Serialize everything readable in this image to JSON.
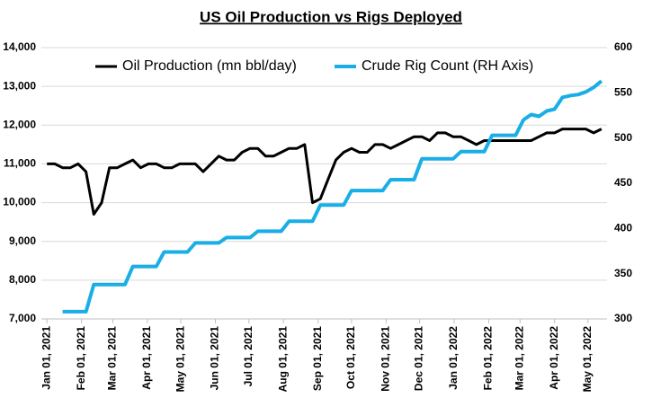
{
  "chart_data": {
    "type": "line",
    "title": "US Oil Production vs Rigs Deployed",
    "legend": "top",
    "grid": true,
    "x": [
      "2021-01-01",
      "2021-01-08",
      "2021-01-15",
      "2021-01-22",
      "2021-01-29",
      "2021-02-05",
      "2021-02-12",
      "2021-02-19",
      "2021-02-26",
      "2021-03-05",
      "2021-03-12",
      "2021-03-19",
      "2021-03-26",
      "2021-04-02",
      "2021-04-09",
      "2021-04-16",
      "2021-04-23",
      "2021-04-30",
      "2021-05-07",
      "2021-05-14",
      "2021-05-21",
      "2021-05-28",
      "2021-06-04",
      "2021-06-11",
      "2021-06-18",
      "2021-06-25",
      "2021-07-02",
      "2021-07-09",
      "2021-07-16",
      "2021-07-23",
      "2021-07-30",
      "2021-08-06",
      "2021-08-13",
      "2021-08-20",
      "2021-08-27",
      "2021-09-03",
      "2021-09-10",
      "2021-09-17",
      "2021-09-24",
      "2021-10-01",
      "2021-10-08",
      "2021-10-15",
      "2021-10-22",
      "2021-10-29",
      "2021-11-05",
      "2021-11-12",
      "2021-11-19",
      "2021-11-26",
      "2021-12-03",
      "2021-12-10",
      "2021-12-17",
      "2021-12-24",
      "2021-12-31",
      "2022-01-07",
      "2022-01-14",
      "2022-01-21",
      "2022-01-28",
      "2022-02-04",
      "2022-02-11",
      "2022-02-18",
      "2022-02-25",
      "2022-03-04",
      "2022-03-11",
      "2022-03-18",
      "2022-03-25",
      "2022-04-01",
      "2022-04-08",
      "2022-04-15",
      "2022-04-22",
      "2022-04-29",
      "2022-05-06",
      "2022-05-13"
    ],
    "series": [
      {
        "name": "Oil Production (mn bbl/day)",
        "color": "#000000",
        "axis": "y",
        "values": [
          11000,
          11000,
          10900,
          10900,
          11000,
          10800,
          9700,
          10000,
          10900,
          10900,
          11000,
          11100,
          10900,
          11000,
          11000,
          10900,
          10900,
          11000,
          11000,
          11000,
          10800,
          11000,
          11200,
          11100,
          11100,
          11300,
          11400,
          11400,
          11200,
          11200,
          11300,
          11400,
          11400,
          11500,
          10000,
          10100,
          10600,
          11100,
          11300,
          11400,
          11300,
          11300,
          11500,
          11500,
          11400,
          11500,
          11600,
          11700,
          11700,
          11600,
          11800,
          11800,
          11700,
          11700,
          11600,
          11500,
          11600,
          11600,
          11600,
          11600,
          11600,
          11600,
          11600,
          11700,
          11800,
          11800,
          11900,
          11900,
          11900,
          11900,
          11800,
          11900
        ]
      },
      {
        "name": "Crude Rig Count (RH Axis)",
        "color": "#1aaee6",
        "axis": "y2",
        "values": [
          null,
          null,
          308,
          308,
          308,
          308,
          338,
          338,
          338,
          338,
          338,
          358,
          358,
          358,
          358,
          374,
          374,
          374,
          374,
          384,
          384,
          384,
          384,
          390,
          390,
          390,
          390,
          397,
          397,
          397,
          397,
          408,
          408,
          408,
          408,
          426,
          426,
          426,
          426,
          442,
          442,
          442,
          442,
          442,
          454,
          454,
          454,
          454,
          477,
          477,
          477,
          477,
          477,
          485,
          485,
          485,
          485,
          503,
          503,
          503,
          503,
          520,
          526,
          524,
          530,
          532,
          545,
          547,
          548,
          551,
          556,
          563
        ]
      }
    ],
    "xlim": [
      "2020-12-27",
      "2022-05-18"
    ],
    "xticks": [
      {
        "value": "2021-01-01",
        "label": "Jan 01, 2021"
      },
      {
        "value": "2021-02-01",
        "label": "Feb 01, 2021"
      },
      {
        "value": "2021-03-01",
        "label": "Mar 01, 2021"
      },
      {
        "value": "2021-04-01",
        "label": "Apr 01, 2021"
      },
      {
        "value": "2021-05-01",
        "label": "May 01, 2021"
      },
      {
        "value": "2021-06-01",
        "label": "Jun 01, 2021"
      },
      {
        "value": "2021-07-01",
        "label": "Jul 01, 2021"
      },
      {
        "value": "2021-08-01",
        "label": "Aug 01, 2021"
      },
      {
        "value": "2021-09-01",
        "label": "Sep 01, 2021"
      },
      {
        "value": "2021-10-01",
        "label": "Oct 01, 2021"
      },
      {
        "value": "2021-11-01",
        "label": "Nov 01, 2021"
      },
      {
        "value": "2021-12-01",
        "label": "Dec 01, 2021"
      },
      {
        "value": "2022-01-01",
        "label": "Jan 01, 2022"
      },
      {
        "value": "2022-02-01",
        "label": "Feb 01, 2022"
      },
      {
        "value": "2022-03-01",
        "label": "Mar 01, 2022"
      },
      {
        "value": "2022-04-01",
        "label": "Apr 01, 2022"
      },
      {
        "value": "2022-05-01",
        "label": "May 01, 2022"
      }
    ],
    "ylim": [
      7000,
      14000
    ],
    "yticks": [
      {
        "value": 7000,
        "label": "7,000"
      },
      {
        "value": 8000,
        "label": "8,000"
      },
      {
        "value": 9000,
        "label": "9,000"
      },
      {
        "value": 10000,
        "label": "10,000"
      },
      {
        "value": 11000,
        "label": "11,000"
      },
      {
        "value": 12000,
        "label": "12,000"
      },
      {
        "value": 13000,
        "label": "13,000"
      },
      {
        "value": 14000,
        "label": "14,000"
      }
    ],
    "y2lim": [
      300,
      600
    ],
    "y2ticks": [
      300,
      350,
      400,
      450,
      500,
      550,
      600
    ]
  }
}
